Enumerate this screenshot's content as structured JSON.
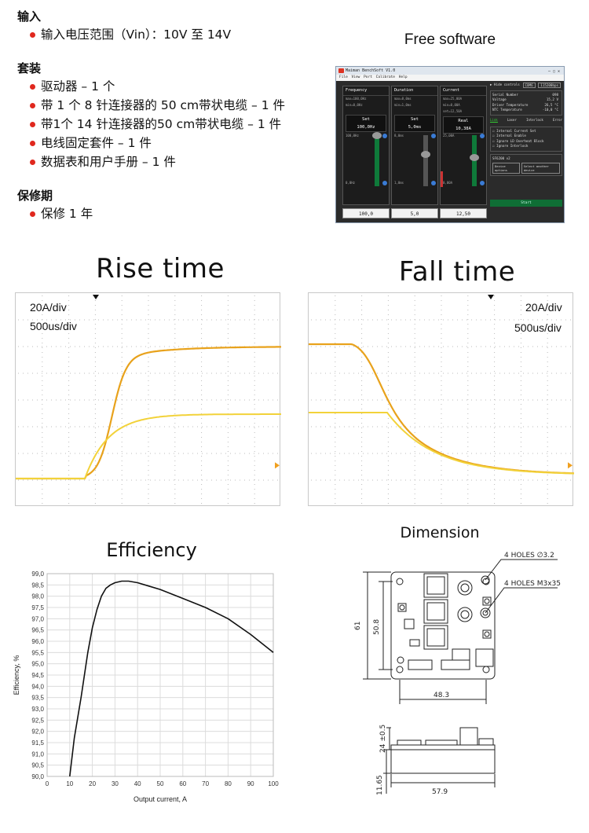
{
  "spec": {
    "input": {
      "title": "输入",
      "items": [
        "输入电压范围（Vin）：10V 至 14V"
      ]
    },
    "kit": {
      "title": "套装",
      "items": [
        "驱动器 – 1 个",
        "带 1 个 8 针连接器的 50 cm带状电缆 – 1 件",
        "带1个 14 针连接器的50 cm带状电缆 – 1 件",
        "电线固定套件 – 1 件",
        "数据表和用户手册 – 1 件"
      ]
    },
    "warranty": {
      "title": "保修期",
      "items": [
        "保修 1 年"
      ]
    }
  },
  "software": {
    "caption": "Free software",
    "window_title": "Maiman BenchSoft V1.0",
    "menu": "File  View  Port  Calibrate  Help",
    "panels": [
      {
        "title": "Frequency",
        "max": "max=100,0Hz",
        "min": "min=0,0Hz",
        "big_label": "Set",
        "big_value": "100,0Hz",
        "top": "100,0Hz",
        "bottom": "0,0Hz",
        "value": "100,0"
      },
      {
        "title": "Duration",
        "max": "max=8,0ms",
        "min": "min=1,0ms",
        "big_label": "Set",
        "big_value": "5,0ms",
        "top": "8,0ms",
        "bottom": "1,0ms",
        "value": "5,0"
      },
      {
        "title": "Current",
        "max": "max=25,00A",
        "min": "min=0,00A",
        "extra": "set=12,50A",
        "big_label": "Real",
        "big_value": "10,38A",
        "top": "25,00A",
        "bottom": "0,00A",
        "value": "12,50"
      }
    ],
    "right": {
      "hide": "▶ Hide controls",
      "port": "COM6",
      "baud": "115200bps",
      "info": [
        {
          "k": "Serial Number",
          "v": "098"
        },
        {
          "k": "Voltage",
          "v": "15,2  V"
        },
        {
          "k": "Driver Temperature",
          "v": "26,5  °C"
        },
        {
          "k": "NTC Temperature",
          "v": "-10,0  °C"
        }
      ],
      "tabs": [
        "Link",
        "Laser",
        "Interlock",
        "Error"
      ],
      "checks": [
        "Internal Current Set",
        "Internal Enable",
        "Ignore LD Overheat Block",
        "Ignore Interlock"
      ],
      "device": "SF6200 v2",
      "btn1": "Device options",
      "btn2": "Select another device",
      "start": "Start"
    }
  },
  "scopes": {
    "rise": {
      "title": "Rise time",
      "ch_scale": "20A/div",
      "time_scale": "500us/div"
    },
    "fall": {
      "title": "Fall time",
      "ch_scale": "20A/div",
      "time_scale": "500us/div"
    }
  },
  "efficiency": {
    "title": "Efficiency",
    "chart_data": {
      "type": "line",
      "xlabel": "Output current, A",
      "ylabel": "Efficiency, %",
      "xlim": [
        0,
        100
      ],
      "ylim": [
        90.0,
        99.0
      ],
      "x_ticks": [
        "0",
        "10",
        "20",
        "30",
        "40",
        "50",
        "60",
        "70",
        "80",
        "90",
        "100"
      ],
      "y_ticks": [
        "90,0",
        "90,5",
        "91,0",
        "91,5",
        "92,0",
        "92,5",
        "93,0",
        "93,5",
        "94,0",
        "94,5",
        "95,0",
        "95,5",
        "96,0",
        "96,5",
        "97,0",
        "97,5",
        "98,0",
        "98,5",
        "99,0"
      ],
      "grid": true,
      "series": [
        {
          "x": [
            10,
            12,
            15,
            18,
            20,
            22,
            24,
            26,
            28,
            30,
            33,
            36,
            40,
            45,
            50,
            60,
            70,
            80,
            90,
            100
          ],
          "y": [
            90.0,
            91.7,
            93.5,
            95.5,
            96.6,
            97.4,
            98.0,
            98.35,
            98.5,
            98.6,
            98.67,
            98.67,
            98.6,
            98.45,
            98.3,
            97.9,
            97.5,
            97.0,
            96.3,
            95.5
          ]
        }
      ]
    }
  },
  "dimension": {
    "title": "Dimension",
    "holes1": "4 HOLES ∅3.2",
    "holes2": "4 HOLES M3x35",
    "d61": "61",
    "d508": "50.8",
    "d483": "48.3",
    "d24": "24 ±0.5",
    "d1165": "11.65",
    "d579": "57.9"
  }
}
